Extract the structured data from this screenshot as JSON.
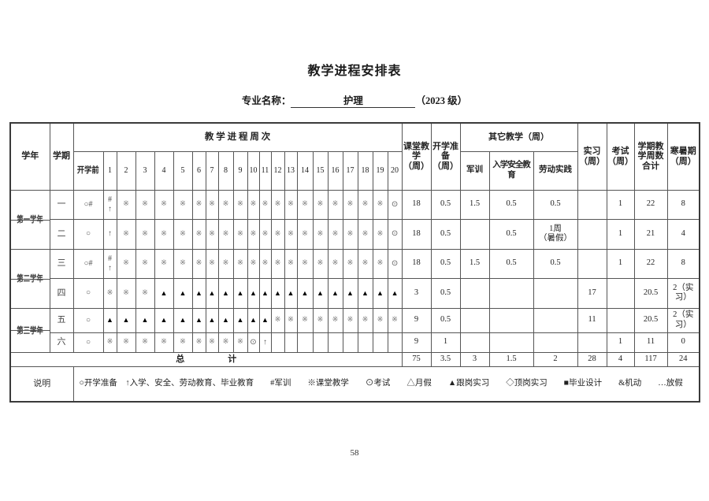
{
  "page": {
    "title": "教学进程安排表",
    "page_number": "58"
  },
  "subtitle": {
    "label": "专业名称：",
    "major": "护理",
    "cohort": "（2023 级）"
  },
  "table": {
    "headers": {
      "xuenian": "学年",
      "xueqi": "学期",
      "weeks_title": "教 学 进 程 周 次",
      "pre_week": "开学前",
      "week_numbers": [
        "1",
        "2",
        "3",
        "4",
        "5",
        "6",
        "7",
        "8",
        "9",
        "10",
        "11",
        "12",
        "13",
        "14",
        "15",
        "16",
        "17",
        "18",
        "19",
        "20"
      ],
      "ketang": "课堂教学（周）",
      "kaixue": "开学准备（周）",
      "qita": "其它教学（周）",
      "junxun": "军训",
      "ruxue": "入学安全教育",
      "laodong": "劳动实践",
      "shixi": "实习（周）",
      "kaoshi": "考试（周）",
      "heji": "学期教学周数合计",
      "hanshuqi": "寒暑期（周）"
    },
    "rows": [
      {
        "year": "第一学年",
        "semester": "一",
        "pre": "○#",
        "weeks": [
          "#\n↑",
          "※",
          "※",
          "※",
          "※",
          "※",
          "※",
          "※",
          "※",
          "※",
          "※",
          "※",
          "※",
          "※",
          "※",
          "※",
          "※",
          "※",
          "※",
          "⊙"
        ],
        "ketang": "18",
        "kaixue": "0.5",
        "junxun": "1.5",
        "ruxue": "0.5",
        "laodong": "0.5",
        "shixi": "",
        "kaoshi": "1",
        "heji": "22",
        "hanshuqi": "8"
      },
      {
        "year": "第一学年",
        "semester": "二",
        "pre": "○",
        "weeks": [
          "↑",
          "※",
          "※",
          "※",
          "※",
          "※",
          "※",
          "※",
          "※",
          "※",
          "※",
          "※",
          "※",
          "※",
          "※",
          "※",
          "※",
          "※",
          "※",
          "⊙"
        ],
        "ketang": "18",
        "kaixue": "0.5",
        "junxun": "",
        "ruxue": "0.5",
        "laodong": "1周\n（暑假）",
        "shixi": "",
        "kaoshi": "1",
        "heji": "21",
        "hanshuqi": "4"
      },
      {
        "year": "第二学年",
        "semester": "三",
        "pre": "○#",
        "weeks": [
          "#\n↑",
          "※",
          "※",
          "※",
          "※",
          "※",
          "※",
          "※",
          "※",
          "※",
          "※",
          "※",
          "※",
          "※",
          "※",
          "※",
          "※",
          "※",
          "※",
          "⊙"
        ],
        "ketang": "18",
        "kaixue": "0.5",
        "junxun": "1.5",
        "ruxue": "0.5",
        "laodong": "0.5",
        "shixi": "",
        "kaoshi": "1",
        "heji": "22",
        "hanshuqi": "8"
      },
      {
        "year": "第二学年",
        "semester": "四",
        "pre": "○",
        "weeks": [
          "※",
          "※",
          "※",
          "▲",
          "▲",
          "▲",
          "▲",
          "▲",
          "▲",
          "▲",
          "▲",
          "▲",
          "▲",
          "▲",
          "▲",
          "▲",
          "▲",
          "▲",
          "▲",
          "▲"
        ],
        "ketang": "3",
        "kaixue": "0.5",
        "junxun": "",
        "ruxue": "",
        "laodong": "",
        "shixi": "17",
        "kaoshi": "",
        "heji": "20.5",
        "hanshuqi": "2（实习）"
      },
      {
        "year": "第三学年",
        "semester": "五",
        "pre": "○",
        "weeks": [
          "▲",
          "▲",
          "▲",
          "▲",
          "▲",
          "▲",
          "▲",
          "▲",
          "▲",
          "▲",
          "▲",
          "※",
          "※",
          "※",
          "※",
          "※",
          "※",
          "※",
          "※",
          "※"
        ],
        "ketang": "9",
        "kaixue": "0.5",
        "junxun": "",
        "ruxue": "",
        "laodong": "",
        "shixi": "11",
        "kaoshi": "",
        "heji": "20.5",
        "hanshuqi": "2（实习）"
      },
      {
        "year": "第三学年",
        "semester": "六",
        "pre": "○",
        "weeks": [
          "※",
          "※",
          "※",
          "※",
          "※",
          "※",
          "※",
          "※",
          "※",
          "⊙",
          "↑",
          "",
          "",
          "",
          "",
          "",
          "",
          "",
          "",
          " "
        ],
        "ketang": "9",
        "kaixue": "1",
        "junxun": "",
        "ruxue": "",
        "laodong": "",
        "shixi": "",
        "kaoshi": "1",
        "heji": "11",
        "hanshuqi": "0"
      }
    ],
    "total": {
      "label": "总　　　　　计",
      "ketang": "75",
      "kaixue": "3.5",
      "junxun": "3",
      "ruxue": "1.5",
      "laodong": "2",
      "shixi": "28",
      "kaoshi": "4",
      "heji": "117",
      "hanshuqi": "24"
    },
    "legend": {
      "label": "说明",
      "text": "○开学准备　↑入学、安全、劳动教育、毕业教育　　#军训　　※课堂教学　　⊙考试　　△月假　　▲跟岗实习　　◇顶岗实习　　■毕业设计　　&机动　　…放假"
    }
  }
}
